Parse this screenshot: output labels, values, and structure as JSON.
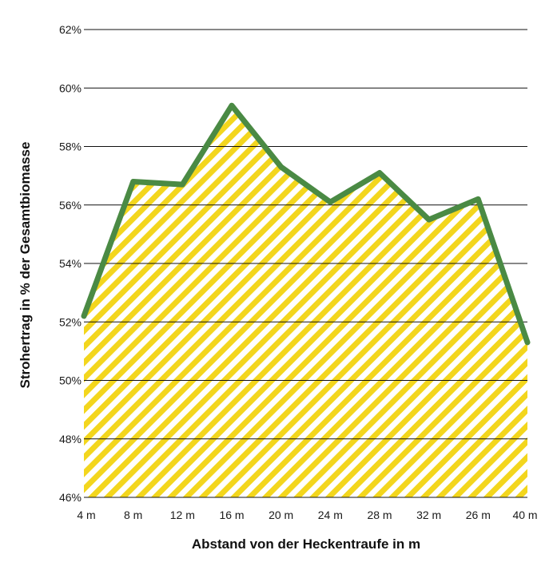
{
  "chart_data": {
    "type": "area",
    "title": "",
    "xlabel": "Abstand von der Heckentraufe in m",
    "ylabel": "Strohertrag in % der Gesamtbiomasse",
    "categories": [
      "4 m",
      "8 m",
      "12 m",
      "16 m",
      "20 m",
      "24 m",
      "28 m",
      "32 m",
      "26 m",
      "40 m"
    ],
    "values": [
      52.2,
      56.8,
      56.7,
      59.4,
      57.3,
      56.1,
      57.1,
      55.5,
      56.2,
      51.3
    ],
    "ylim": [
      46,
      62
    ],
    "yticks": [
      46,
      48,
      50,
      52,
      54,
      56,
      58,
      60,
      62
    ],
    "ytick_labels": [
      "46%",
      "48%",
      "50%",
      "52%",
      "54%",
      "56%",
      "58%",
      "60%",
      "62%"
    ],
    "grid": true,
    "legend": "none",
    "colors": {
      "line": "#4a8a44",
      "fill_stripe": "#f3d61d",
      "fill_background": "#ffffff",
      "grid": "#111111"
    }
  }
}
